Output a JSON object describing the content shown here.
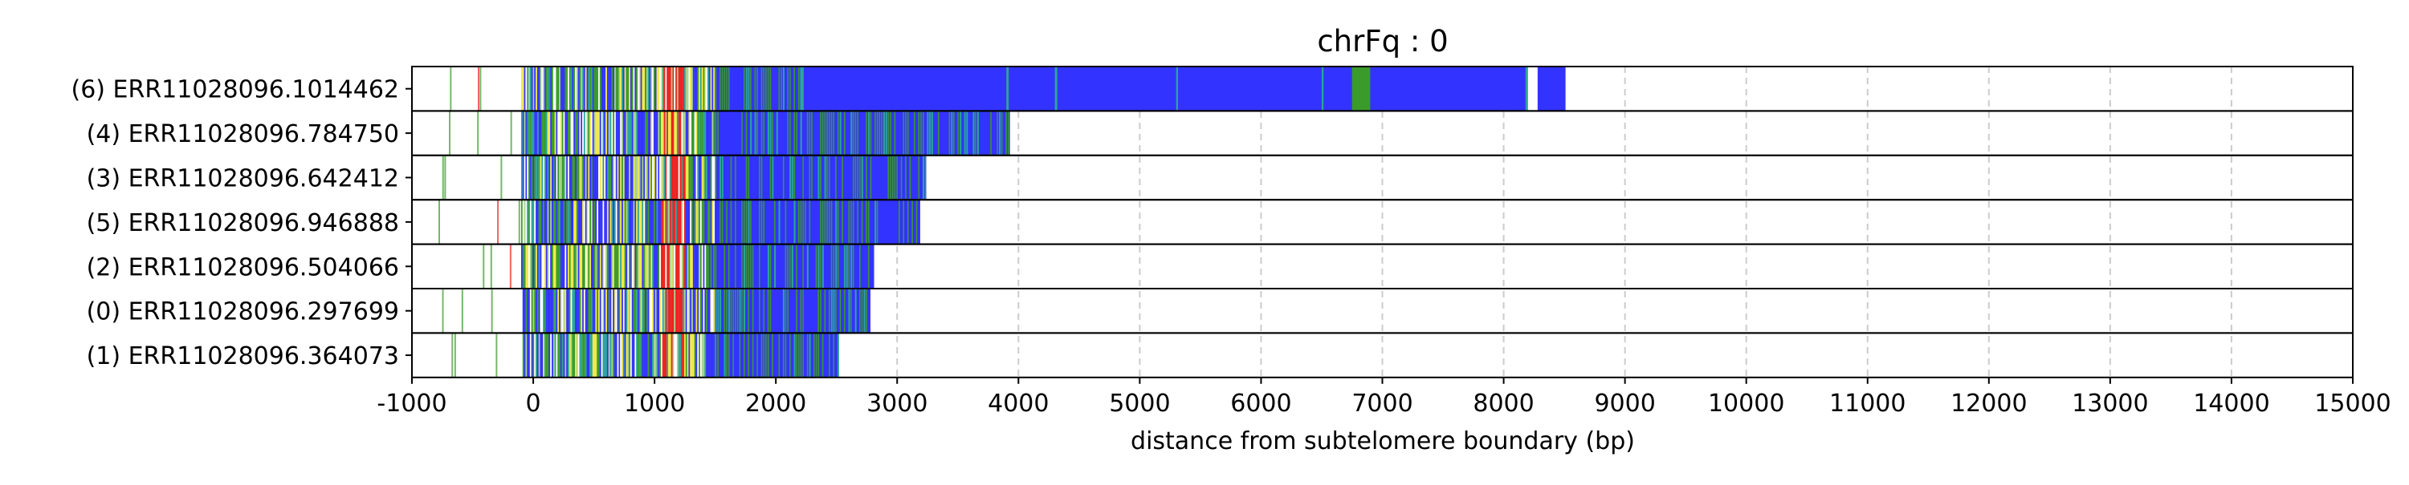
{
  "chart_data": {
    "type": "bar",
    "title": "chrFq : 0",
    "xlabel": "distance from subtelomere boundary (bp)",
    "ylabel": "",
    "xlim": [
      -1000,
      15000
    ],
    "xticks": [
      -1000,
      0,
      1000,
      2000,
      3000,
      4000,
      5000,
      6000,
      7000,
      8000,
      9000,
      10000,
      11000,
      12000,
      13000,
      14000,
      15000
    ],
    "grid": "vertical-dashed",
    "categories": [
      "(6) ERR11028096.1014462",
      "(4) ERR11028096.784750",
      "(3) ERR11028096.642412",
      "(5) ERR11028096.946888",
      "(2) ERR11028096.504066",
      "(0) ERR11028096.297699",
      "(1) ERR11028096.364073"
    ],
    "series": [
      {
        "values": [
          8510,
          3930,
          3240,
          3190,
          2810,
          2780,
          2510
        ]
      }
    ],
    "read_start": [
      -900,
      -870,
      -850,
      -800,
      -850,
      -820,
      -780
    ],
    "colors": {
      "blue": "#3333ff",
      "green": "#3a9a2a",
      "yellow": "#f2e84b",
      "red": "#ee2222",
      "teal": "#2aa59a",
      "lightgreen": "#a9d28c",
      "grid": "#cccccc"
    }
  }
}
